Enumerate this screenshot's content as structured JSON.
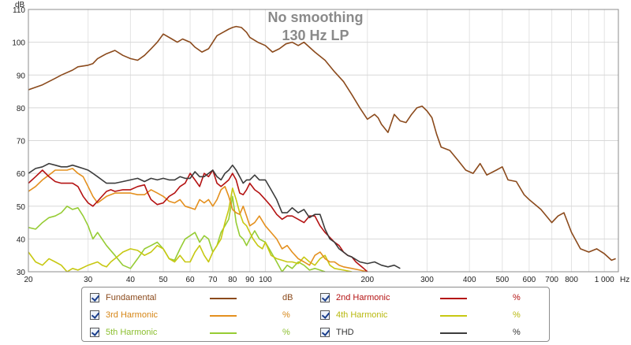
{
  "chart_data": {
    "type": "line",
    "title_lines": [
      "No smoothing",
      "130 Hz LP"
    ],
    "xlabel": "",
    "x_unit": "Hz",
    "ylabel": "",
    "y_unit": "dB",
    "x_scale": "log",
    "xlim": [
      20,
      1100
    ],
    "ylim": [
      30,
      110
    ],
    "x_ticks": [
      20,
      30,
      40,
      50,
      60,
      70,
      80,
      90,
      100,
      200,
      300,
      400,
      500,
      600,
      700,
      800,
      1000
    ],
    "x_tick_labels": [
      "20",
      "30",
      "40",
      "50",
      "60",
      "70",
      "80",
      "90",
      "100",
      "200",
      "300",
      "400",
      "500",
      "600",
      "700",
      "800",
      "1 000"
    ],
    "y_ticks": [
      30,
      40,
      50,
      60,
      70,
      80,
      90,
      100,
      110
    ],
    "y_tick_labels": [
      "30",
      "40",
      "50",
      "60",
      "70",
      "80",
      "90",
      "100",
      "110"
    ],
    "grid": true,
    "legend_position": "bottom-center",
    "series": [
      {
        "name": "Fundamental",
        "unit": "dB",
        "color": "#8b4a1c",
        "x": [
          20,
          22,
          24,
          25,
          27,
          28,
          30,
          31,
          32,
          34,
          36,
          38,
          40,
          42,
          44,
          46,
          48,
          50,
          53,
          55,
          57,
          60,
          62,
          65,
          68,
          70,
          72,
          75,
          78,
          80,
          82,
          85,
          88,
          90,
          95,
          100,
          105,
          110,
          115,
          120,
          125,
          130,
          140,
          150,
          160,
          170,
          180,
          190,
          200,
          210,
          215,
          220,
          230,
          240,
          250,
          260,
          270,
          280,
          290,
          300,
          310,
          320,
          330,
          350,
          370,
          390,
          410,
          430,
          450,
          480,
          500,
          520,
          550,
          580,
          600,
          650,
          700,
          730,
          760,
          800,
          850,
          900,
          950,
          1000,
          1050,
          1080
        ],
        "y": [
          85.5,
          87,
          89,
          90,
          91.5,
          92.5,
          93,
          93.5,
          95,
          96.5,
          97.5,
          96,
          95,
          94.5,
          96,
          98,
          100,
          102.5,
          101,
          100,
          101,
          100,
          98.5,
          97,
          98,
          100,
          102,
          103,
          104,
          104.5,
          104.8,
          104.5,
          103,
          101.5,
          100,
          99,
          97,
          98,
          99.5,
          100,
          99,
          100,
          97,
          94.5,
          91,
          88,
          84,
          80,
          76.5,
          78,
          77,
          75,
          72.5,
          78,
          76,
          75.5,
          78,
          80,
          80.5,
          79,
          77,
          72,
          68,
          67,
          64,
          61,
          60,
          63,
          59.5,
          61,
          62,
          58,
          57.5,
          53.5,
          52,
          49,
          45,
          47,
          48,
          42,
          37,
          36,
          37,
          35.5,
          33.5,
          34
        ]
      },
      {
        "name": "2nd Harmonic",
        "unit": "%",
        "color": "#b41212",
        "x": [
          20,
          21,
          22,
          23,
          24,
          25,
          26,
          27,
          28,
          29,
          30,
          31,
          32,
          34,
          35,
          36,
          38,
          40,
          42,
          44,
          45,
          46,
          48,
          50,
          52,
          54,
          56,
          58,
          60,
          62,
          64,
          66,
          68,
          70,
          72,
          74,
          76,
          78,
          80,
          82,
          84,
          86,
          88,
          90,
          93,
          96,
          100,
          104,
          108,
          112,
          116,
          120,
          125,
          130,
          135,
          140,
          145,
          150,
          160,
          165,
          170,
          175,
          180,
          185,
          190,
          195,
          200
        ],
        "y": [
          57,
          59,
          61,
          59,
          57.5,
          57,
          57,
          57,
          56,
          53,
          51,
          50,
          51.5,
          54.5,
          55,
          54.5,
          55,
          55,
          56,
          56.5,
          54,
          52,
          50.5,
          51,
          53,
          54,
          56,
          57,
          60,
          58,
          56,
          60,
          59,
          61,
          57,
          56,
          57,
          58,
          60,
          58,
          54,
          53.5,
          55,
          57,
          55,
          54,
          52,
          50,
          47.5,
          46,
          47,
          47,
          46,
          45,
          47,
          47,
          44,
          42,
          39,
          38,
          36,
          35,
          34.5,
          33,
          32,
          31,
          30
        ]
      },
      {
        "name": "3rd Harmonic",
        "unit": "%",
        "color": "#e4901e",
        "x": [
          20,
          21,
          22,
          23,
          24,
          25,
          26,
          27,
          28,
          29,
          30,
          31,
          32,
          33,
          34,
          36,
          38,
          40,
          42,
          44,
          46,
          48,
          50,
          52,
          54,
          56,
          58,
          60,
          62,
          64,
          66,
          68,
          70,
          72,
          74,
          76,
          78,
          80,
          82,
          84,
          86,
          88,
          90,
          93,
          96,
          100,
          104,
          108,
          112,
          116,
          120,
          125,
          130,
          135,
          140,
          145,
          150,
          155,
          160,
          165,
          170,
          180,
          190,
          200
        ],
        "y": [
          54.5,
          56,
          58,
          59.5,
          61,
          61,
          61,
          61.5,
          60,
          59,
          56,
          53,
          51,
          52,
          53,
          54,
          54,
          54,
          53.5,
          53.5,
          55,
          54,
          53,
          51.5,
          51,
          52,
          50,
          49.5,
          49,
          52,
          51,
          52,
          50,
          52,
          55,
          56,
          53,
          49,
          48,
          47.5,
          50,
          47,
          44,
          45,
          47,
          44,
          42,
          40,
          37,
          38,
          36,
          34,
          33,
          32,
          35,
          36,
          34,
          33,
          33,
          32,
          31.5,
          31,
          30.5,
          30
        ]
      },
      {
        "name": "4th Harmonic",
        "unit": "%",
        "color": "#c7c812",
        "x": [
          20,
          21,
          22,
          23,
          24,
          25,
          26,
          27,
          28,
          30,
          32,
          33,
          34,
          35,
          36,
          38,
          40,
          42,
          44,
          46,
          48,
          50,
          52,
          54,
          56,
          58,
          60,
          62,
          64,
          66,
          68,
          70,
          72,
          74,
          76,
          78,
          80,
          82,
          84,
          86,
          88,
          90,
          92,
          95,
          98,
          100,
          104,
          108,
          112,
          116,
          120,
          125,
          130,
          135,
          140,
          145,
          150,
          155,
          160,
          170,
          180
        ],
        "y": [
          36,
          33,
          32,
          34,
          33,
          32,
          30,
          31,
          30.5,
          32,
          33,
          32,
          31.5,
          33,
          34,
          36,
          37,
          36.5,
          35,
          36,
          38,
          37,
          34,
          33,
          35,
          33,
          33,
          36,
          38,
          35,
          33,
          36,
          38,
          40,
          45,
          49,
          55.5,
          52,
          48,
          45,
          44,
          42,
          40,
          38,
          37,
          39,
          35,
          34,
          33.5,
          33,
          33,
          32.5,
          34.5,
          33,
          32,
          34,
          35,
          32,
          31,
          30.5,
          30
        ]
      },
      {
        "name": "5th Harmonic",
        "unit": "%",
        "color": "#96cc34",
        "x": [
          20,
          21,
          22,
          23,
          24,
          25,
          26,
          27,
          28,
          29,
          30,
          31,
          32,
          34,
          36,
          38,
          40,
          42,
          44,
          46,
          48,
          50,
          52,
          54,
          56,
          58,
          60,
          62,
          64,
          66,
          68,
          70,
          72,
          74,
          76,
          78,
          80,
          82,
          84,
          86,
          88,
          90,
          93,
          96,
          100,
          104,
          108,
          112,
          116,
          120,
          125,
          130,
          135,
          140,
          145,
          150
        ],
        "y": [
          43.5,
          43,
          45,
          46.5,
          47,
          48,
          50,
          49,
          49.5,
          47,
          44,
          40,
          42,
          38,
          35,
          32,
          31,
          34,
          37,
          38,
          39,
          37,
          34,
          33.5,
          37,
          40,
          41,
          42,
          39,
          41,
          40,
          36,
          38,
          42,
          44,
          46,
          53,
          45,
          41,
          40,
          38,
          40,
          42.5,
          40,
          39,
          36,
          33,
          30,
          32,
          31,
          33,
          32,
          30.5,
          31,
          30.5,
          30
        ]
      },
      {
        "name": "THD",
        "unit": "%",
        "color": "#3c3c3c",
        "x": [
          20,
          21,
          22,
          23,
          24,
          25,
          26,
          27,
          28,
          29,
          30,
          31,
          32,
          34,
          36,
          38,
          40,
          42,
          44,
          46,
          48,
          50,
          52,
          54,
          56,
          58,
          60,
          62,
          64,
          66,
          68,
          70,
          72,
          74,
          76,
          78,
          80,
          82,
          84,
          86,
          88,
          90,
          93,
          96,
          100,
          104,
          108,
          112,
          116,
          120,
          125,
          130,
          135,
          140,
          145,
          150,
          155,
          160,
          165,
          170,
          175,
          180,
          190,
          200,
          210,
          220,
          230,
          240,
          250
        ],
        "y": [
          60,
          61.5,
          62,
          63,
          62.5,
          62,
          62,
          62.5,
          62,
          61.5,
          61,
          60,
          59,
          57,
          57,
          57.5,
          58,
          58.5,
          57.5,
          58.5,
          58,
          58.5,
          58,
          58,
          59,
          58.5,
          58.5,
          60.5,
          59,
          59,
          60,
          61,
          59,
          58,
          60,
          61,
          62.5,
          61,
          59,
          57,
          58,
          58,
          59.5,
          58,
          58,
          55,
          52,
          48,
          48,
          49.5,
          48,
          49,
          46.5,
          47.5,
          47.5,
          43,
          40,
          39,
          37,
          36,
          35,
          34.5,
          33,
          32.5,
          33,
          32,
          31.5,
          32,
          31
        ]
      }
    ]
  },
  "legend": {
    "items": [
      {
        "name": "Fundamental",
        "unit": "dB",
        "color": "#8b4a1c",
        "text_color": "#8b4a1c"
      },
      {
        "name": "2nd Harmonic",
        "unit": "%",
        "color": "#b41212",
        "text_color": "#b41212"
      },
      {
        "name": "3rd Harmonic",
        "unit": "%",
        "color": "#e4901e",
        "text_color": "#d68616"
      },
      {
        "name": "4th Harmonic",
        "unit": "%",
        "color": "#c7c812",
        "text_color": "#b8b80e"
      },
      {
        "name": "5th Harmonic",
        "unit": "%",
        "color": "#96cc34",
        "text_color": "#8cbf30"
      },
      {
        "name": "THD",
        "unit": "%",
        "color": "#3c3c3c",
        "text_color": "#333333"
      }
    ]
  }
}
